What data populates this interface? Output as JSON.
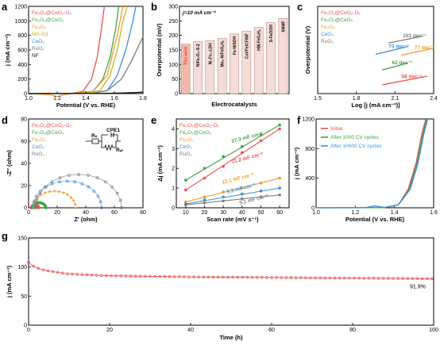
{
  "colors": {
    "red": "#ef4f4f",
    "green": "#43a047",
    "orange": "#f39a2c",
    "blue": "#3b8fd6",
    "gray": "#7f7f7f",
    "olive": "#c9b421",
    "black": "#111111",
    "barfill": "#f4ddd7",
    "barhi": "#f1b9aa"
  },
  "chart_data": [
    {
      "id": "a",
      "type": "line",
      "panel": "a",
      "xlabel": "Potential (V vs. RHE)",
      "ylabel": "j (mA cm⁻²)",
      "xlim": [
        1.0,
        1.8
      ],
      "ylim": [
        0,
        1200
      ],
      "xticks": [
        "1.0",
        "1.2",
        "1.4",
        "1.6",
        "1.8"
      ],
      "yticks": [
        "0",
        "200",
        "400",
        "600",
        "800",
        "1000",
        "1200"
      ],
      "series": [
        {
          "name": "Fe2O3@CeO2-OV",
          "color": "#ef4f4f",
          "x": [
            1.0,
            1.3,
            1.38,
            1.44,
            1.48,
            1.51,
            1.53
          ],
          "y": [
            0,
            2,
            30,
            200,
            500,
            900,
            1200
          ]
        },
        {
          "name": "Fe2O3@CeO2",
          "color": "#43a047",
          "x": [
            1.0,
            1.3,
            1.45,
            1.52,
            1.57,
            1.61,
            1.63
          ],
          "y": [
            0,
            2,
            30,
            200,
            500,
            900,
            1200
          ]
        },
        {
          "name": "Fe2O3",
          "color": "#f39a2c",
          "x": [
            1.0,
            1.15,
            1.2,
            1.25,
            1.3,
            1.45,
            1.55,
            1.62,
            1.66
          ],
          "y": [
            0,
            -15,
            -40,
            -15,
            0,
            30,
            250,
            800,
            1200
          ]
        },
        {
          "name": "MIL-53",
          "color": "#c9b421",
          "x": [
            1.0,
            1.4,
            1.5,
            1.57,
            1.62,
            1.66,
            1.69
          ],
          "y": [
            0,
            5,
            40,
            250,
            600,
            1000,
            1200
          ]
        },
        {
          "name": "CeO2",
          "color": "#3b8fd6",
          "x": [
            1.0,
            1.45,
            1.55,
            1.62,
            1.68,
            1.73,
            1.75
          ],
          "y": [
            0,
            5,
            40,
            250,
            600,
            1000,
            1200
          ]
        },
        {
          "name": "RuO2",
          "color": "#7f7f7f",
          "x": [
            1.0,
            1.45,
            1.55,
            1.65,
            1.72,
            1.78,
            1.8
          ],
          "y": [
            0,
            5,
            40,
            200,
            450,
            700,
            780
          ]
        },
        {
          "name": "NF",
          "color": "#111111",
          "x": [
            1.0,
            1.5,
            1.65,
            1.75,
            1.8
          ],
          "y": [
            0,
            2,
            8,
            15,
            20
          ]
        }
      ],
      "legend": [
        "Fe₂O₃@CeO₂-Oᵥ",
        "Fe₂O₃@CeO₂",
        "Fe₂O₃",
        "MIL-53",
        "CeO₂",
        "RuO₂",
        "NF"
      ]
    },
    {
      "id": "b",
      "type": "bar",
      "panel": "b",
      "xlabel": "Electrocatalysts",
      "ylabel": "Overpotential (mV)",
      "ylim": [
        0,
        300
      ],
      "yticks": [
        "0",
        "50",
        "100",
        "150",
        "200",
        "250",
        "300"
      ],
      "annotation": "j=10 mA cm⁻²",
      "categories": [
        "This work",
        "NiFe₂O₄-S-2",
        "Ni₃Fe₁-LDH",
        "Mo₂-NiFeOₓHᵧ",
        "Fe-NiSOH",
        "CoVFe/CF/NF",
        "HM-FeOₓHᵧ",
        "S-FeOOH",
        "SNMF"
      ],
      "values": [
        170,
        179,
        182,
        190,
        205,
        215,
        228,
        245,
        258
      ]
    },
    {
      "id": "c",
      "type": "line",
      "panel": "c",
      "xlabel": "Log [j (mA cm⁻²)]",
      "ylabel": "Overpotential (V)",
      "xlim": [
        1.5,
        2.4
      ],
      "ylim": [
        0,
        1
      ],
      "xticks": [
        "1.5",
        "1.8",
        "2.1",
        "2.4"
      ],
      "series": [
        {
          "name": "Fe2O3@CeO2-OV",
          "color": "#ef4f4f",
          "x": [
            2.0,
            2.35
          ],
          "y": [
            0.1,
            0.2
          ],
          "label": "58 dec⁻¹"
        },
        {
          "name": "Fe2O3@CeO2",
          "color": "#43a047",
          "x": [
            2.0,
            2.2
          ],
          "y": [
            0.27,
            0.35
          ],
          "label": "62 dec⁻¹"
        },
        {
          "name": "Fe2O3",
          "color": "#f39a2c",
          "x": [
            2.15,
            2.4
          ],
          "y": [
            0.44,
            0.52
          ],
          "label": "77 dec⁻¹"
        },
        {
          "name": "CeO2",
          "color": "#3b8fd6",
          "x": [
            1.95,
            2.2
          ],
          "y": [
            0.45,
            0.54
          ],
          "label": "73 dec⁻¹"
        },
        {
          "name": "RuO2",
          "color": "#7f7f7f",
          "x": [
            2.05,
            2.32
          ],
          "y": [
            0.58,
            0.66
          ],
          "label": "103 dec⁻¹"
        }
      ],
      "legend": [
        "Fe₂O₃@CeO₂-Oᵥ",
        "Fe₂O₃@CeO₂",
        "Fe₂O₃",
        "CeO₂",
        "RuO₂"
      ]
    },
    {
      "id": "d",
      "type": "scatter",
      "panel": "d",
      "xlabel": "Z′ (ohm)",
      "ylabel": "-Z″ (ohm)",
      "xlim": [
        0,
        80
      ],
      "ylim": [
        0,
        80
      ],
      "xticks": [
        "0",
        "20",
        "40",
        "60",
        "80"
      ],
      "yticks": [
        "0",
        "20",
        "40",
        "60",
        "80"
      ],
      "circuit_labels": [
        "CPE1",
        "Rₛ",
        "Rₑₜ"
      ],
      "series": [
        {
          "name": "Fe2O3@CeO2-OV",
          "color": "#ef4f4f",
          "center": 4.5,
          "radius": 2.5
        },
        {
          "name": "Fe2O3@CeO2",
          "color": "#43a047",
          "center": 7.5,
          "radius": 4.5
        },
        {
          "name": "Fe2O3",
          "color": "#f39a2c",
          "center": 18,
          "radius": 15
        },
        {
          "name": "CeO2",
          "color": "#3b8fd6",
          "center": 27,
          "radius": 24
        },
        {
          "name": "RuO2",
          "color": "#7f7f7f",
          "center": 35,
          "radius": 30
        }
      ],
      "legend": [
        "Fe₂O₃@CeO₂-Oᵥ",
        "Fe₂O₃@CeO₂",
        "Fe₂O₃",
        "CeO₂",
        "RuO₂"
      ]
    },
    {
      "id": "e",
      "type": "scatter",
      "panel": "e",
      "xlabel": "Scan rate (mV s⁻¹)",
      "ylabel": "Δj (mA cm⁻²)",
      "xlim": [
        5,
        65
      ],
      "ylim": [
        0,
        4.5
      ],
      "xticks": [
        "10",
        "20",
        "30",
        "40",
        "50",
        "60"
      ],
      "yticks": [
        "0",
        "1",
        "2",
        "3",
        "4"
      ],
      "x": [
        10,
        20,
        30,
        40,
        50,
        60
      ],
      "series": [
        {
          "name": "Fe2O3@CeO2-OV",
          "color": "#ef4f4f",
          "values": [
            0.9,
            1.5,
            2.1,
            2.8,
            3.4,
            4.0
          ],
          "label": "31.2 mF cm⁻²"
        },
        {
          "name": "Fe2O3@CeO2",
          "color": "#43a047",
          "values": [
            1.4,
            2.0,
            2.6,
            3.1,
            3.7,
            4.2
          ],
          "label": "27.3 mF cm⁻²"
        },
        {
          "name": "Fe2O3",
          "color": "#f39a2c",
          "values": [
            0.3,
            0.55,
            0.8,
            1.0,
            1.25,
            1.5
          ],
          "label": "12.1 mF cm⁻²"
        },
        {
          "name": "CeO2",
          "color": "#3b8fd6",
          "values": [
            0.2,
            0.4,
            0.55,
            0.7,
            0.85,
            1.0
          ],
          "label": "9.3 mF cm⁻²"
        },
        {
          "name": "RuO2",
          "color": "#7f7f7f",
          "values": [
            0.15,
            0.25,
            0.35,
            0.45,
            0.55,
            0.65
          ],
          "label": "5.1 mF cm⁻²"
        }
      ],
      "legend": [
        "Fe₂O₃@CeO₂-Oᵥ",
        "Fe₂O₃@CeO₂",
        "Fe₂O₃",
        "CeO₂",
        "RuO₂"
      ]
    },
    {
      "id": "f",
      "type": "line",
      "panel": "f",
      "xlabel": "Potential (V vs. RHE)",
      "ylabel": "j (mA cm⁻²)",
      "xlim": [
        1.0,
        1.6
      ],
      "ylim": [
        0,
        1200
      ],
      "xticks": [
        "1.0",
        "1.2",
        "1.4",
        "1.6"
      ],
      "yticks": [
        "0",
        "400",
        "800",
        "1200"
      ],
      "series": [
        {
          "name": "Initial",
          "color": "#ef4f4f",
          "x": [
            1.0,
            1.35,
            1.42,
            1.47,
            1.51,
            1.54,
            1.56
          ],
          "y": [
            0,
            2,
            40,
            250,
            600,
            1000,
            1200
          ]
        },
        {
          "name": "After 1000 CV cycles",
          "color": "#43a047",
          "x": [
            1.0,
            1.35,
            1.42,
            1.475,
            1.515,
            1.545,
            1.565
          ],
          "y": [
            0,
            2,
            40,
            250,
            600,
            1000,
            1200
          ]
        },
        {
          "name": "After 10000 CV cycles",
          "color": "#3b8fd6",
          "x": [
            1.0,
            1.25,
            1.3,
            1.35,
            1.42,
            1.48,
            1.52,
            1.55,
            1.57
          ],
          "y": [
            0,
            2,
            25,
            5,
            40,
            250,
            600,
            1000,
            1200
          ]
        }
      ],
      "legend": [
        "Initial",
        "After 1000 CV cycles",
        "After 10000 CV cycles"
      ]
    },
    {
      "id": "g",
      "type": "line",
      "panel": "g",
      "xlabel": "Time (h)",
      "ylabel": "j (mA cm⁻²)",
      "xlim": [
        0,
        100
      ],
      "ylim": [
        0,
        150
      ],
      "xticks": [
        "0",
        "20",
        "40",
        "60",
        "80",
        "100"
      ],
      "yticks": [
        "0",
        "50",
        "100",
        "150"
      ],
      "series": [
        {
          "name": "stability",
          "color": "#ef4f4f",
          "x": [
            0,
            1,
            3,
            6,
            10,
            20,
            40,
            60,
            80,
            100
          ],
          "y": [
            108,
            102,
            96,
            92,
            88,
            85,
            83,
            82,
            81,
            80
          ]
        }
      ],
      "annotation": "91.9%"
    }
  ]
}
